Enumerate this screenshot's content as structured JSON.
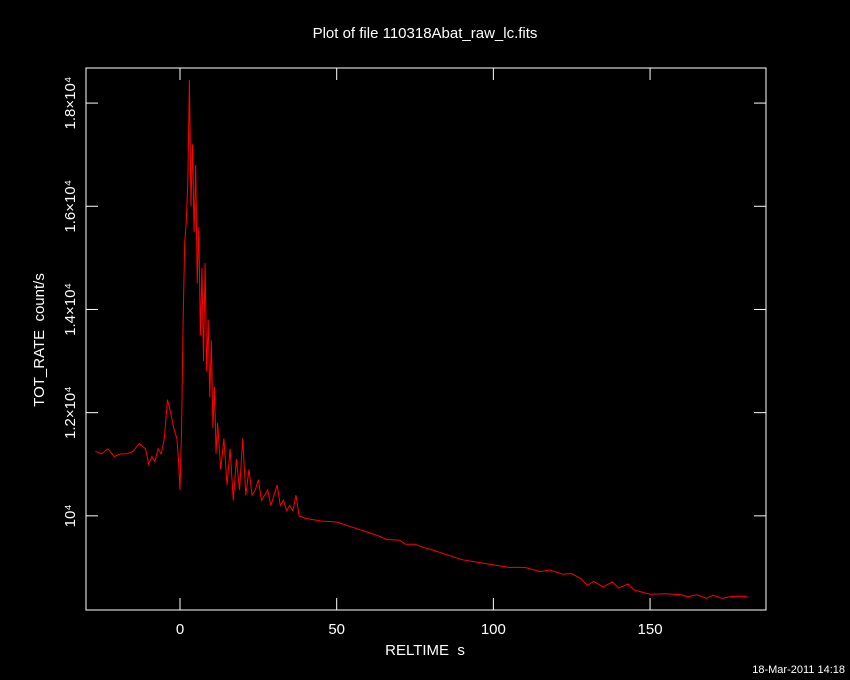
{
  "chart_data": {
    "type": "line",
    "title": "Plot of file 110318Abat_raw_lc.fits",
    "x_label": "RELTIME  s",
    "y_label": "TOT_RATE  count/s",
    "timestamp": "18-Mar-2011 14:18",
    "x": [
      -27,
      -25,
      -23,
      -21,
      -19,
      -17,
      -15,
      -13,
      -11,
      -10,
      -9,
      -8,
      -7,
      -6,
      -5,
      -4,
      -3,
      -2,
      -1,
      -0.5,
      0,
      0.5,
      1,
      1.5,
      2,
      2.5,
      3,
      3.5,
      4,
      4.5,
      5,
      5.5,
      6,
      6.5,
      7,
      7.5,
      8,
      8.5,
      9,
      9.5,
      10,
      10.5,
      11,
      11.5,
      12,
      13,
      14,
      15,
      16,
      17,
      18,
      19,
      20,
      21,
      22,
      23,
      24,
      25,
      26,
      27,
      28,
      29,
      30,
      31,
      32,
      33,
      34,
      35,
      36,
      37,
      38,
      40,
      45,
      50,
      55,
      60,
      63,
      66,
      70,
      72,
      75,
      78,
      80,
      85,
      90,
      95,
      100,
      105,
      110,
      115,
      118,
      122,
      125,
      128,
      130,
      132,
      135,
      138,
      140,
      143,
      145,
      150,
      155,
      160,
      162,
      165,
      168,
      170,
      173,
      176,
      181
    ],
    "series": [
      {
        "color": "#ff0000",
        "values": [
          11250,
          11200,
          11300,
          11150,
          11200,
          11200,
          11250,
          11400,
          11300,
          11000,
          11150,
          11050,
          11300,
          11200,
          11500,
          12250,
          12000,
          11700,
          11500,
          11100,
          10500,
          11700,
          13800,
          15300,
          15700,
          16500,
          18450,
          16000,
          17200,
          15500,
          16800,
          14500,
          15600,
          13500,
          14800,
          13000,
          14900,
          12800,
          13800,
          12300,
          13400,
          11700,
          12500,
          11200,
          11800,
          10900,
          11500,
          10600,
          11300,
          10300,
          11100,
          10500,
          11500,
          10400,
          10900,
          10400,
          10500,
          10700,
          10300,
          10400,
          10500,
          10200,
          10400,
          10600,
          10200,
          10300,
          10100,
          10200,
          10100,
          10400,
          10000,
          9950,
          9900,
          9880,
          9780,
          9680,
          9620,
          9540,
          9530,
          9450,
          9450,
          9380,
          9350,
          9250,
          9150,
          9100,
          9050,
          9000,
          9000,
          8920,
          8950,
          8870,
          8880,
          8780,
          8650,
          8730,
          8620,
          8720,
          8600,
          8680,
          8560,
          8480,
          8490,
          8470,
          8430,
          8470,
          8400,
          8460,
          8400,
          8440,
          8440
        ]
      }
    ],
    "xlim": [
      -30,
      187
    ],
    "ylim": [
      8175,
      18680
    ],
    "xticks": [
      0,
      50,
      100,
      150
    ],
    "yticks": [
      {
        "value": 10000,
        "label": "10⁴"
      },
      {
        "value": 12000,
        "label": "1.2×10⁴"
      },
      {
        "value": 14000,
        "label": "1.4×10⁴"
      },
      {
        "value": 16000,
        "label": "1.6×10⁴"
      },
      {
        "value": 18000,
        "label": "1.8×10⁴"
      }
    ]
  }
}
